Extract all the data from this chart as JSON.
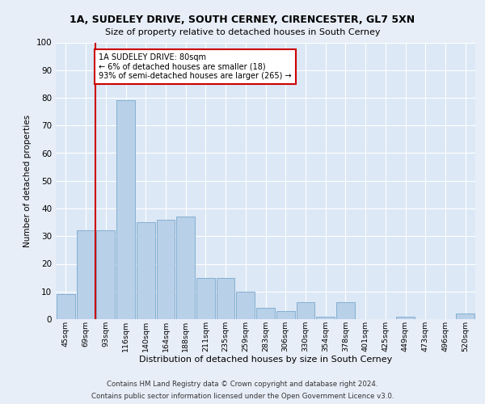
{
  "title1": "1A, SUDELEY DRIVE, SOUTH CERNEY, CIRENCESTER, GL7 5XN",
  "title2": "Size of property relative to detached houses in South Cerney",
  "xlabel": "Distribution of detached houses by size in South Cerney",
  "ylabel": "Number of detached properties",
  "categories": [
    "45sqm",
    "69sqm",
    "93sqm",
    "116sqm",
    "140sqm",
    "164sqm",
    "188sqm",
    "211sqm",
    "235sqm",
    "259sqm",
    "283sqm",
    "306sqm",
    "330sqm",
    "354sqm",
    "378sqm",
    "401sqm",
    "425sqm",
    "449sqm",
    "473sqm",
    "496sqm",
    "520sqm"
  ],
  "values": [
    9,
    32,
    32,
    79,
    35,
    36,
    37,
    15,
    15,
    10,
    4,
    3,
    6,
    1,
    6,
    0,
    0,
    1,
    0,
    0,
    2
  ],
  "bar_color": "#b8d0e8",
  "bar_edge_color": "#7aa8cc",
  "background_color": "#dce8f5",
  "grid_color": "#ffffff",
  "marker_label": "1A SUDELEY DRIVE: 80sqm",
  "annotation_line1": "← 6% of detached houses are smaller (18)",
  "annotation_line2": "93% of semi-detached houses are larger (265) →",
  "annotation_box_color": "#ffffff",
  "annotation_box_edge": "#cc0000",
  "marker_line_color": "#cc0000",
  "ylim": [
    0,
    100
  ],
  "yticks": [
    0,
    10,
    20,
    30,
    40,
    50,
    60,
    70,
    80,
    90,
    100
  ],
  "fig_bg_color": "#e8eef8",
  "footer1": "Contains HM Land Registry data © Crown copyright and database right 2024.",
  "footer2": "Contains public sector information licensed under the Open Government Licence v3.0."
}
